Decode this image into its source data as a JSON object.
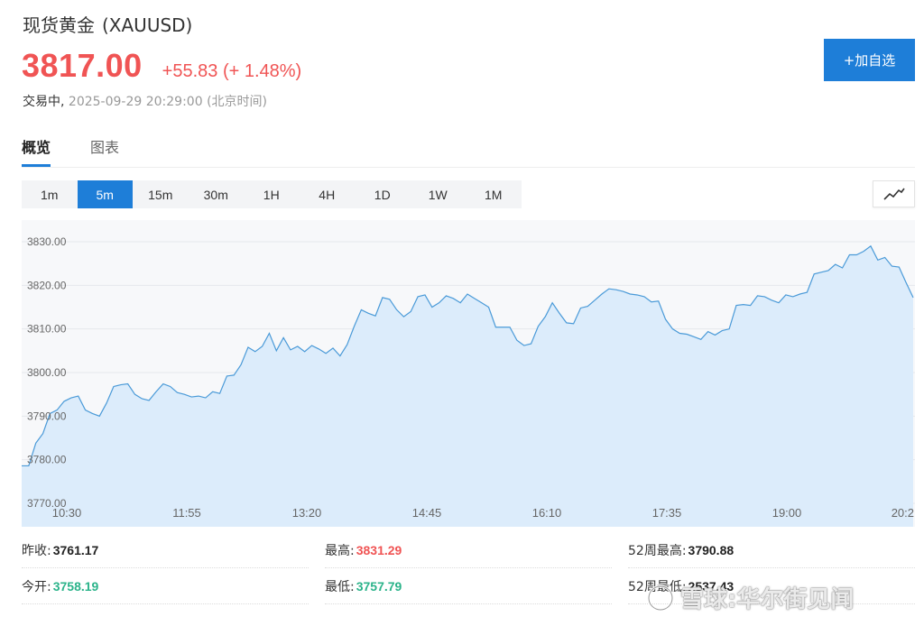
{
  "header": {
    "name": "现货黄金",
    "code": "(XAUUSD)",
    "price": "3817.00",
    "change": "+55.83",
    "change_pct": "(+ 1.48%)",
    "status": "交易中,",
    "timestamp": "2025-09-29 20:29:00",
    "timezone": "(北京时间)"
  },
  "add_button": {
    "label": "+加自选"
  },
  "tabs": [
    {
      "label": "概览",
      "active": true
    },
    {
      "label": "图表",
      "active": false
    }
  ],
  "periods": [
    {
      "label": "1m",
      "active": false
    },
    {
      "label": "5m",
      "active": true
    },
    {
      "label": "15m",
      "active": false
    },
    {
      "label": "30m",
      "active": false
    },
    {
      "label": "1H",
      "active": false
    },
    {
      "label": "4H",
      "active": false
    },
    {
      "label": "1D",
      "active": false
    },
    {
      "label": "1W",
      "active": false
    },
    {
      "label": "1M",
      "active": false
    }
  ],
  "chart_type_icon": "line-chart-icon",
  "colors": {
    "accent": "#1e7ed8",
    "up": "#f05454",
    "down": "#2bb38a",
    "line": "#4a9ad8",
    "area": "#dcecfb"
  },
  "chart_data": {
    "type": "area",
    "ylim": [
      3770,
      3832
    ],
    "yticks": [
      "3830.00",
      "3820.00",
      "3810.00",
      "3800.00",
      "3790.00",
      "3780.00",
      "3770.00"
    ],
    "ytick_values": [
      3830,
      3820,
      3810,
      3800,
      3790,
      3780,
      3770
    ],
    "xticks": [
      "10:30",
      "11:55",
      "13:20",
      "14:45",
      "16:10",
      "17:35",
      "19:00",
      "20:2"
    ],
    "values": [
      3778.6,
      3778.6,
      3783.8,
      3786.0,
      3790.6,
      3791.4,
      3793.4,
      3794.2,
      3794.6,
      3791.4,
      3790.6,
      3790.0,
      3793.0,
      3796.8,
      3797.2,
      3797.4,
      3795.0,
      3794.0,
      3793.6,
      3795.6,
      3797.4,
      3796.8,
      3795.4,
      3795.0,
      3794.4,
      3794.6,
      3794.2,
      3795.6,
      3795.2,
      3799.2,
      3799.4,
      3801.8,
      3805.8,
      3804.8,
      3806.0,
      3809.0,
      3805.0,
      3808.0,
      3805.2,
      3806.0,
      3804.8,
      3806.2,
      3805.4,
      3804.4,
      3805.6,
      3803.8,
      3806.4,
      3810.6,
      3814.4,
      3813.6,
      3813.0,
      3817.2,
      3816.8,
      3814.4,
      3812.8,
      3814.0,
      3817.4,
      3817.8,
      3815.0,
      3816.0,
      3817.6,
      3817.0,
      3816.0,
      3818.0,
      3817.0,
      3816.0,
      3815.0,
      3810.4,
      3810.4,
      3810.4,
      3807.4,
      3806.2,
      3806.6,
      3810.6,
      3812.8,
      3816.0,
      3813.6,
      3811.4,
      3811.2,
      3814.8,
      3815.2,
      3816.6,
      3818.0,
      3819.2,
      3819.0,
      3818.6,
      3818.0,
      3817.8,
      3817.4,
      3816.2,
      3816.4,
      3812.2,
      3810.0,
      3809.0,
      3808.8,
      3808.2,
      3807.6,
      3809.4,
      3808.6,
      3809.6,
      3810.0,
      3815.4,
      3815.6,
      3815.4,
      3817.6,
      3817.4,
      3816.6,
      3816.0,
      3817.8,
      3817.4,
      3818.0,
      3818.4,
      3822.6,
      3823.0,
      3823.4,
      3824.8,
      3824.0,
      3827.0,
      3827.0,
      3827.8,
      3829.0,
      3825.8,
      3826.4,
      3824.4,
      3824.2,
      3820.6,
      3817.2
    ]
  },
  "stats": [
    [
      {
        "label": "昨收:",
        "value": "3761.17",
        "tone": "neutral"
      },
      {
        "label": "最高:",
        "value": "3831.29",
        "tone": "up"
      },
      {
        "label": "52周最高:",
        "value": "3790.88",
        "tone": "neutral"
      }
    ],
    [
      {
        "label": "今开:",
        "value": "3758.19",
        "tone": "down"
      },
      {
        "label": "最低:",
        "value": "3757.79",
        "tone": "down"
      },
      {
        "label": "52周最低:",
        "value": "2537.43",
        "tone": "neutral"
      }
    ]
  ],
  "watermark": {
    "text": "雪球:华尔街见闻"
  }
}
